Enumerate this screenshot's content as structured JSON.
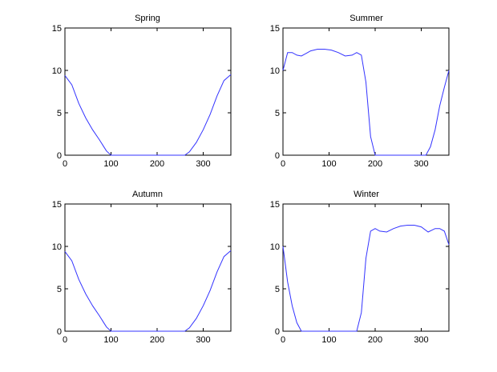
{
  "chart_data": [
    {
      "type": "line",
      "title": "Spring",
      "xlabel": "",
      "ylabel": "",
      "xlim": [
        0,
        360
      ],
      "ylim": [
        0,
        15
      ],
      "xticks": [
        0,
        100,
        200,
        300
      ],
      "yticks": [
        0,
        5,
        10,
        15
      ],
      "grid": false,
      "line_color": "#3333ff",
      "series": [
        {
          "x": [
            0,
            15,
            30,
            45,
            60,
            75,
            90,
            100,
            260,
            270,
            285,
            300,
            315,
            330,
            345,
            360
          ],
          "y": [
            9.4,
            8.3,
            6.1,
            4.4,
            3.0,
            1.8,
            0.5,
            0.0,
            0.0,
            0.4,
            1.5,
            3.0,
            4.8,
            7.0,
            8.8,
            9.5
          ]
        }
      ]
    },
    {
      "type": "line",
      "title": "Summer",
      "xlabel": "",
      "ylabel": "",
      "xlim": [
        0,
        360
      ],
      "ylim": [
        0,
        15
      ],
      "xticks": [
        0,
        100,
        200,
        300
      ],
      "yticks": [
        0,
        5,
        10,
        15
      ],
      "grid": false,
      "line_color": "#3333ff",
      "series": [
        {
          "x": [
            0,
            10,
            20,
            30,
            40,
            50,
            60,
            75,
            90,
            105,
            120,
            135,
            150,
            160,
            170,
            180,
            190,
            200,
            205,
            310,
            320,
            330,
            340,
            350,
            360
          ],
          "y": [
            10.0,
            12.1,
            12.1,
            11.8,
            11.7,
            12.0,
            12.3,
            12.5,
            12.5,
            12.4,
            12.1,
            11.7,
            11.8,
            12.1,
            11.8,
            8.6,
            2.2,
            0.0,
            0.0,
            0.0,
            1.0,
            3.0,
            5.8,
            8.0,
            10.0
          ]
        }
      ]
    },
    {
      "type": "line",
      "title": "Autumn",
      "xlabel": "",
      "ylabel": "",
      "xlim": [
        0,
        360
      ],
      "ylim": [
        0,
        15
      ],
      "xticks": [
        0,
        100,
        200,
        300
      ],
      "yticks": [
        0,
        5,
        10,
        15
      ],
      "grid": false,
      "line_color": "#3333ff",
      "series": [
        {
          "x": [
            0,
            15,
            30,
            45,
            60,
            75,
            90,
            100,
            260,
            270,
            285,
            300,
            315,
            330,
            345,
            360
          ],
          "y": [
            9.4,
            8.3,
            6.1,
            4.4,
            3.0,
            1.8,
            0.5,
            0.0,
            0.0,
            0.4,
            1.5,
            3.0,
            4.8,
            7.0,
            8.8,
            9.5
          ]
        }
      ]
    },
    {
      "type": "line",
      "title": "Winter",
      "xlabel": "",
      "ylabel": "",
      "xlim": [
        0,
        360
      ],
      "ylim": [
        0,
        15
      ],
      "xticks": [
        0,
        100,
        200,
        300
      ],
      "yticks": [
        0,
        5,
        10,
        15
      ],
      "grid": false,
      "line_color": "#3333ff",
      "series": [
        {
          "x": [
            0,
            10,
            20,
            30,
            40,
            50,
            155,
            160,
            170,
            180,
            190,
            200,
            210,
            225,
            240,
            255,
            270,
            285,
            300,
            315,
            330,
            340,
            350,
            360
          ],
          "y": [
            10.0,
            5.8,
            3.0,
            1.0,
            0.0,
            0.0,
            0.0,
            0.0,
            2.2,
            8.6,
            11.8,
            12.1,
            11.8,
            11.7,
            12.1,
            12.4,
            12.5,
            12.5,
            12.3,
            11.7,
            12.1,
            12.1,
            11.8,
            10.2
          ]
        }
      ]
    }
  ]
}
